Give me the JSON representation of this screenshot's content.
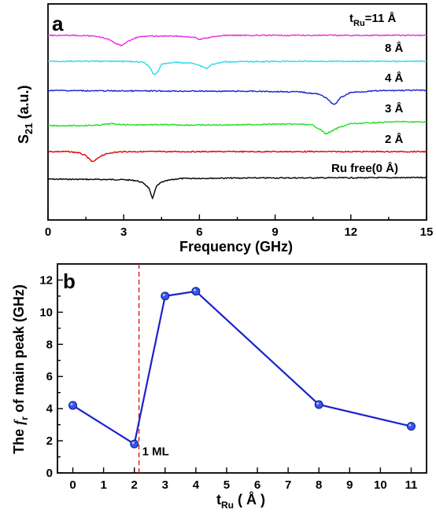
{
  "chart_data": [
    {
      "panel": "a",
      "type": "line",
      "xlabel": "Frequency (GHz)",
      "ylabel_main": "S",
      "ylabel_sub": "21",
      "ylabel_tail": " (a.u.)",
      "xlim": [
        0,
        15
      ],
      "xticks": [
        "0",
        "3",
        "6",
        "9",
        "12",
        "15"
      ],
      "series": [
        {
          "name": "Ru free(0 Å)",
          "color": "#000000",
          "x": [
            0,
            3.0,
            3.5,
            3.8,
            4.0,
            4.1,
            4.15,
            4.2,
            4.3,
            4.5,
            4.8,
            5.2,
            6,
            8,
            10,
            12,
            15
          ],
          "y": [
            0,
            -0.5,
            -1.5,
            -4,
            -9,
            -17,
            -19,
            -14,
            -7,
            -3,
            -1,
            0.5,
            0.8,
            1.1,
            1.2,
            1.3,
            1.5
          ]
        },
        {
          "name": "2 Å",
          "color": "#e00000",
          "x": [
            0,
            0.8,
            1.2,
            1.5,
            1.7,
            1.8,
            1.9,
            2.1,
            2.5,
            3,
            4,
            6,
            10,
            15
          ],
          "y": [
            0,
            0,
            -1,
            -4,
            -9,
            -10,
            -8,
            -4,
            -1,
            0,
            0,
            0,
            0,
            0
          ]
        },
        {
          "name": "3 Å",
          "color": "#22dd22",
          "x": [
            0,
            1,
            2,
            2.5,
            3.0,
            3.5,
            4,
            6,
            8,
            9,
            10,
            10.5,
            10.8,
            11.0,
            11.2,
            11.5,
            12,
            13,
            14,
            15
          ],
          "y": [
            0,
            0,
            0.5,
            2,
            1,
            0.8,
            1,
            0.6,
            1,
            1.5,
            1.5,
            0.5,
            -4,
            -8,
            -6,
            -2,
            2,
            3,
            4,
            3.5
          ]
        },
        {
          "name": "4 Å",
          "color": "#1a22cc",
          "x": [
            0,
            2,
            4,
            6,
            8,
            10,
            10.8,
            11.1,
            11.3,
            11.4,
            11.6,
            12,
            13,
            14,
            15
          ],
          "y": [
            0,
            -0.5,
            -0.6,
            -0.8,
            -0.9,
            -1.5,
            -4,
            -9,
            -14,
            -13,
            -7,
            -2,
            -0.5,
            0,
            0
          ]
        },
        {
          "name": "8 Å",
          "color": "#2dd9e8",
          "x": [
            0,
            3,
            3.8,
            4.0,
            4.2,
            4.3,
            4.5,
            5,
            5.8,
            6.1,
            6.3,
            6.5,
            7,
            10,
            15
          ],
          "y": [
            0,
            0,
            -1,
            -5,
            -13,
            -12,
            -3,
            -1,
            -2,
            -5,
            -7,
            -3,
            -0.5,
            0,
            0
          ]
        },
        {
          "name": "t_Ru=11 Å",
          "color": "#e62ee6",
          "x": [
            0,
            1,
            2.0,
            2.4,
            2.7,
            2.9,
            3.1,
            3.4,
            3.7,
            5,
            5.8,
            6.0,
            6.2,
            6.6,
            7,
            9,
            12,
            15
          ],
          "y": [
            0,
            0,
            -1,
            -4,
            -8,
            -10,
            -7,
            -3,
            -1,
            -0.5,
            -2,
            -4,
            -3,
            -1,
            0,
            0,
            0,
            0
          ]
        }
      ],
      "labels": [
        "t",
        "Ru",
        "=11 Å",
        "8 Å",
        "4 Å",
        "3 Å",
        "2 Å",
        "Ru free(0 Å)"
      ]
    },
    {
      "panel": "b",
      "type": "line",
      "color": "#1a22cc",
      "marker_color": "#3355ee",
      "x": [
        0,
        2,
        3,
        4,
        8,
        11
      ],
      "y": [
        4.2,
        1.8,
        11.0,
        11.3,
        4.25,
        2.9
      ],
      "xlim": [
        -0.5,
        11.5
      ],
      "ylim": [
        0,
        13
      ],
      "xticks": [
        "0",
        "1",
        "2",
        "3",
        "4",
        "5",
        "6",
        "7",
        "8",
        "9",
        "10",
        "11"
      ],
      "yticks": [
        "0",
        "2",
        "4",
        "6",
        "8",
        "10",
        "12"
      ],
      "xlabel_main": "t",
      "xlabel_sub": "Ru",
      "xlabel_tail": " ( Å )",
      "ylabel_pre": "The ",
      "ylabel_f": "f",
      "ylabel_sub": "r",
      "ylabel_post": " of main peak  (GHz)",
      "vline": {
        "x": 2.15,
        "color": "#e02020",
        "label": "1 ML"
      }
    }
  ]
}
